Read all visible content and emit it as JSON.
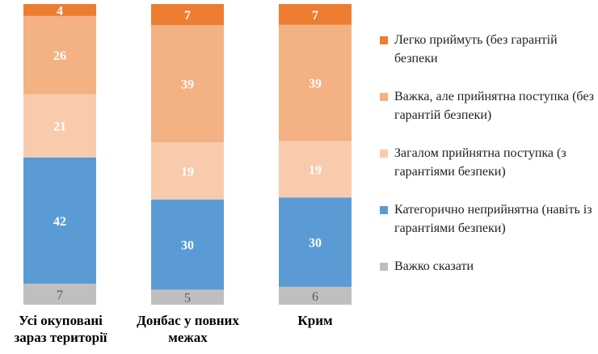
{
  "chart_data": {
    "type": "bar",
    "stacked": true,
    "orientation": "vertical",
    "categories": [
      "Усі окуповані\nзараз території",
      "Донбас у повних\nмежах",
      "Крим"
    ],
    "series": [
      {
        "name": "Важко сказати",
        "color": "#bfbfbf",
        "values": [
          7,
          5,
          6
        ]
      },
      {
        "name": "Категорично неприйнятна (навіть із гарантіями безпеки)",
        "color": "#5b9bd5",
        "values": [
          42,
          30,
          30
        ]
      },
      {
        "name": "Загалом прийнятна поступка (з гарантіями безпеки)",
        "color": "#f8cbad",
        "values": [
          21,
          19,
          19
        ]
      },
      {
        "name": "Важка, але прийнятна поступка (без гарантій безпеки)",
        "color": "#f4b183",
        "values": [
          26,
          39,
          39
        ]
      },
      {
        "name": "Легко приймуть (без гарантій безпеки",
        "color": "#ed7d31",
        "values": [
          4,
          7,
          7
        ]
      }
    ],
    "legend_order": [
      4,
      3,
      2,
      1,
      0
    ],
    "legend_position": "right",
    "grid": false,
    "data_labels": true
  }
}
